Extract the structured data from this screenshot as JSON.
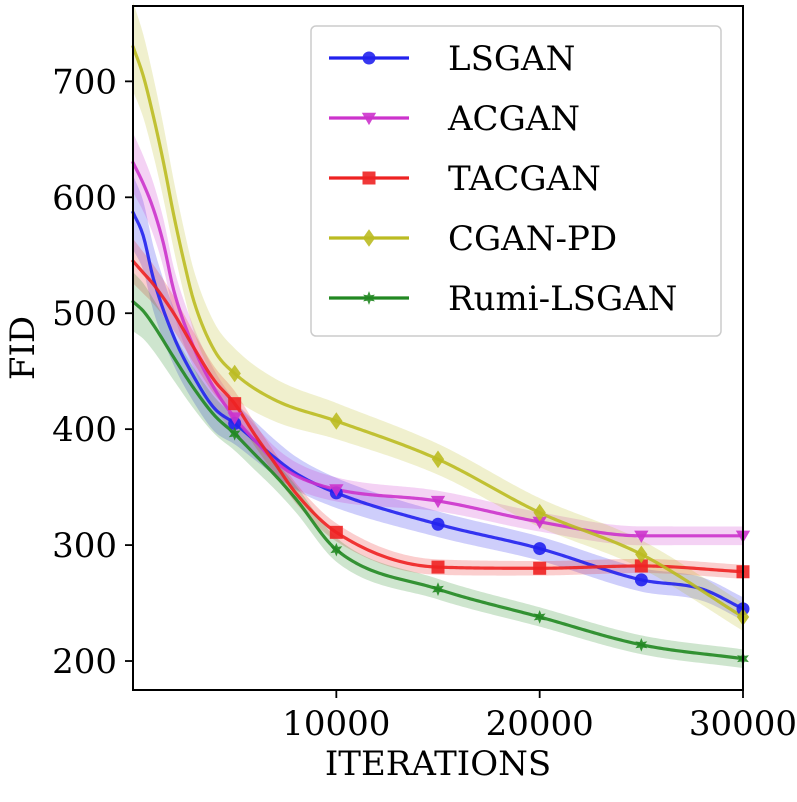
{
  "chart_data": {
    "type": "line",
    "title": "",
    "xlabel": "ITERATIONS",
    "ylabel": "FID",
    "xlim": [
      0,
      30000
    ],
    "ylim": [
      175,
      765
    ],
    "xticks": [
      10000,
      20000,
      30000
    ],
    "xtick_labels": [
      "10000",
      "20000",
      "30000"
    ],
    "yticks": [
      200,
      300,
      400,
      500,
      600,
      700
    ],
    "ytick_labels": [
      "200",
      "300",
      "400",
      "500",
      "600",
      "700"
    ],
    "grid": false,
    "legend_position": "top-right",
    "marker_x": [
      5000,
      10000,
      15000,
      20000,
      25000,
      30000
    ],
    "series": [
      {
        "name": "LSGAN",
        "color": "#2222ee",
        "marker": "circle",
        "x": [
          0,
          500,
          1000,
          2000,
          3000,
          4000,
          5000,
          6000,
          7000,
          8000,
          10000,
          15000,
          20000,
          25000,
          28000,
          30000
        ],
        "values": [
          587,
          567,
          530,
          480,
          445,
          418,
          405,
          390,
          375,
          362,
          345,
          318,
          297,
          270,
          262,
          245
        ],
        "band": 10
      },
      {
        "name": "ACGAN",
        "color": "#cc33cc",
        "marker": "triangle-down",
        "x": [
          0,
          500,
          1000,
          1500,
          2000,
          3000,
          4000,
          5000,
          6000,
          7000,
          8000,
          10000,
          15000,
          20000,
          25000,
          30000
        ],
        "values": [
          630,
          612,
          590,
          560,
          520,
          470,
          435,
          410,
          390,
          372,
          360,
          348,
          338,
          320,
          308,
          308
        ],
        "band": 8
      },
      {
        "name": "TACGAN",
        "color": "#ee2222",
        "marker": "square",
        "x": [
          0,
          500,
          1000,
          2000,
          3000,
          4000,
          5000,
          6000,
          7000,
          8000,
          10000,
          15000,
          20000,
          25000,
          30000
        ],
        "values": [
          545,
          535,
          525,
          500,
          470,
          442,
          422,
          395,
          370,
          345,
          311,
          281,
          280,
          282,
          277
        ],
        "band": 6
      },
      {
        "name": "CGAN-PD",
        "color": "#bbbb22",
        "marker": "diamond",
        "x": [
          0,
          500,
          1000,
          1500,
          2000,
          2500,
          3000,
          4000,
          5000,
          7000,
          10000,
          15000,
          20000,
          25000,
          30000
        ],
        "values": [
          730,
          705,
          670,
          630,
          585,
          545,
          510,
          468,
          448,
          425,
          407,
          374,
          328,
          292,
          238
        ],
        "band": 12
      },
      {
        "name": "Rumi-LSGAN",
        "color": "#228822",
        "marker": "star",
        "x": [
          0,
          500,
          1000,
          2000,
          3000,
          4000,
          5000,
          6000,
          7000,
          8000,
          10000,
          15000,
          20000,
          25000,
          30000
        ],
        "values": [
          510,
          502,
          490,
          462,
          435,
          412,
          396,
          378,
          360,
          340,
          296,
          262,
          238,
          214,
          202
        ],
        "band": 8
      }
    ]
  }
}
